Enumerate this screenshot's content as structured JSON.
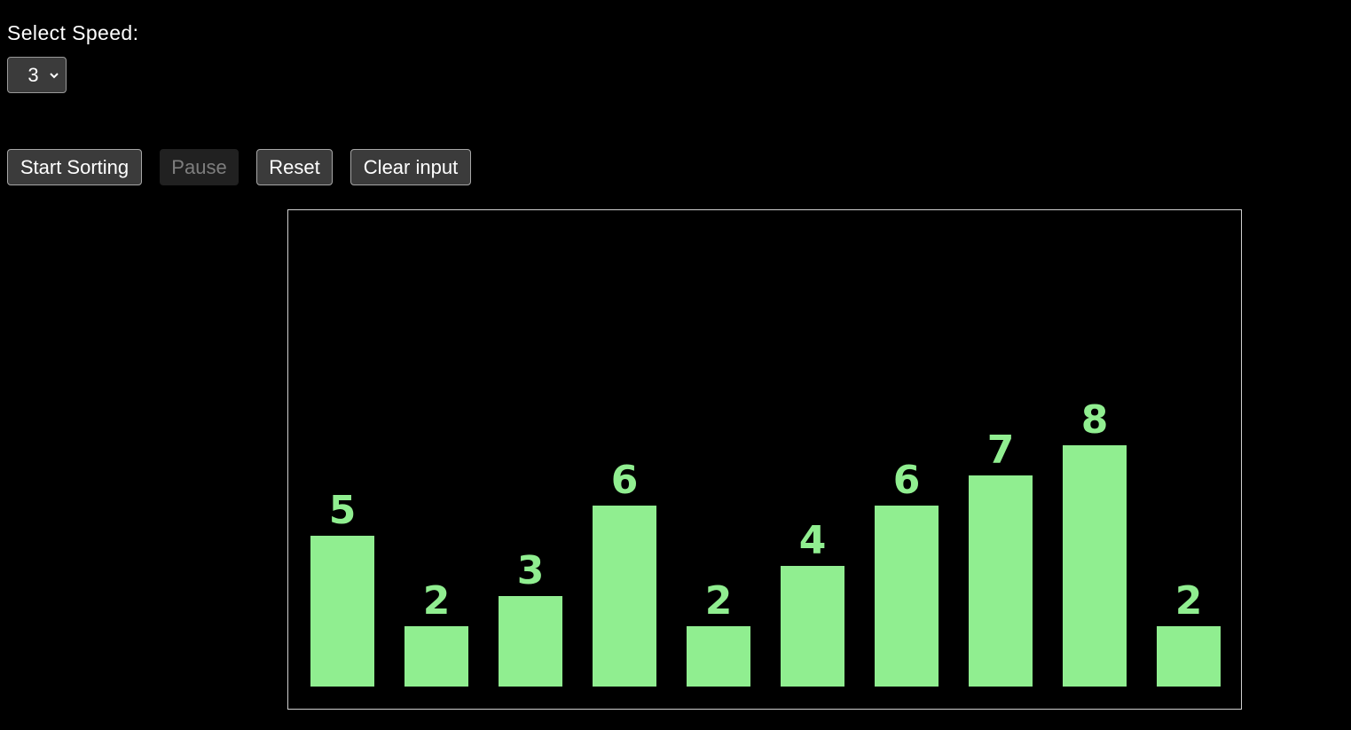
{
  "controls": {
    "speed_label": "Select Speed:",
    "speed_value": "3"
  },
  "buttons": {
    "start": "Start Sorting",
    "pause": "Pause",
    "reset": "Reset",
    "clear": "Clear input"
  },
  "colors": {
    "bar": "#90ee90",
    "label": "#90ee90"
  },
  "chart_data": {
    "type": "bar",
    "values": [
      5,
      2,
      3,
      6,
      2,
      4,
      6,
      7,
      8,
      2
    ],
    "data_labels": [
      "5",
      "2",
      "3",
      "6",
      "2",
      "4",
      "6",
      "7",
      "8",
      "2"
    ]
  }
}
